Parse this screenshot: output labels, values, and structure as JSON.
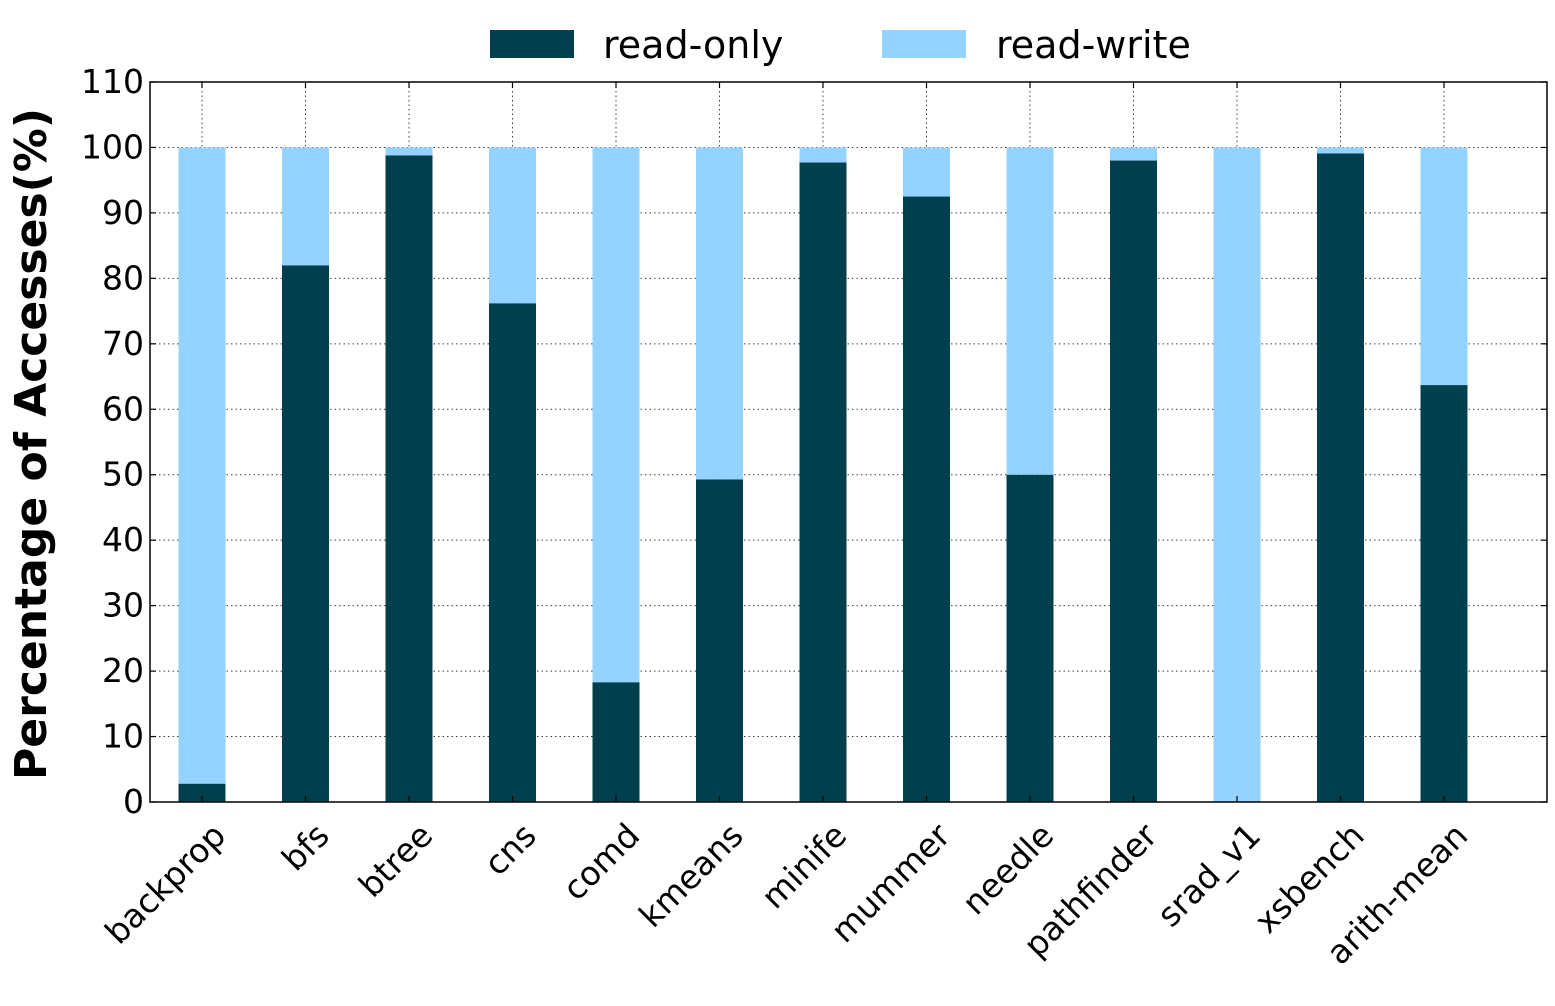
{
  "chart_data": {
    "type": "bar",
    "stacked": true,
    "categories": [
      "backprop",
      "bfs",
      "btree",
      "cns",
      "comd",
      "kmeans",
      "minife",
      "mummer",
      "needle",
      "pathfinder",
      "srad_v1",
      "xsbench",
      "arith-mean"
    ],
    "series": [
      {
        "name": "read-only",
        "color": "#003f4d",
        "values": [
          2.8,
          82.0,
          98.8,
          76.2,
          18.3,
          49.3,
          97.7,
          92.5,
          50.0,
          98.0,
          0.0,
          99.1,
          63.7
        ]
      },
      {
        "name": "read-write",
        "color": "#94d3ff",
        "values": [
          97.2,
          18.0,
          1.2,
          23.8,
          81.7,
          50.7,
          2.3,
          7.5,
          50.0,
          2.0,
          100.0,
          0.9,
          36.3
        ]
      }
    ],
    "title": "",
    "xlabel": "",
    "ylabel": "Percentage of Accesses(%)",
    "ylim": [
      0,
      110
    ],
    "yticks": [
      0,
      10,
      20,
      30,
      40,
      50,
      60,
      70,
      80,
      90,
      100,
      110
    ],
    "grid": true,
    "legend_position": "top-center"
  }
}
